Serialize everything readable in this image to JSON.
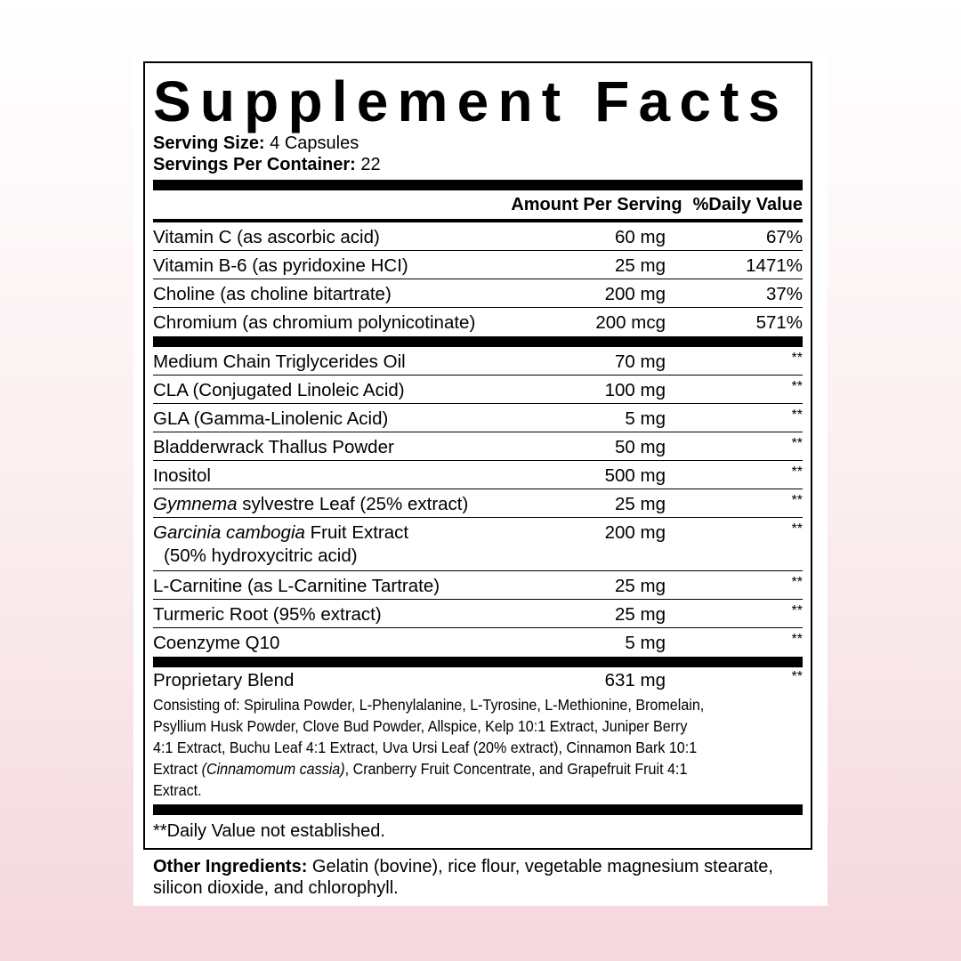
{
  "title": "Supplement Facts",
  "serving_size": {
    "label": "Serving Size:",
    "value": "4 Capsules"
  },
  "servings_per_container": {
    "label": "Servings Per Container:",
    "value": "22"
  },
  "columns": {
    "amount": "Amount Per Serving",
    "dv": "%Daily Value"
  },
  "vitamins": [
    {
      "name": "Vitamin C (as ascorbic acid)",
      "amount": "60 mg",
      "dv": "67%"
    },
    {
      "name": "Vitamin B-6 (as pyridoxine HCI)",
      "amount": "25 mg",
      "dv": "1471%"
    },
    {
      "name": "Choline (as choline bitartrate)",
      "amount": "200 mg",
      "dv": "37%"
    },
    {
      "name": "Chromium (as chromium polynicotinate)",
      "amount": "200 mcg",
      "dv": "571%"
    }
  ],
  "ingredients": [
    {
      "name": "Medium Chain Triglycerides Oil",
      "amount": "70 mg",
      "dv": "**"
    },
    {
      "name": "CLA (Conjugated Linoleic Acid)",
      "amount": "100 mg",
      "dv": "**"
    },
    {
      "name": "GLA (Gamma-Linolenic Acid)",
      "amount": "5 mg",
      "dv": "**"
    },
    {
      "name": "Bladderwrack Thallus Powder",
      "amount": "50 mg",
      "dv": "**"
    },
    {
      "name": "Inositol",
      "amount": "500 mg",
      "dv": "**"
    },
    {
      "name_italic": "Gymnema",
      "name": " sylvestre Leaf (25% extract)",
      "amount": "25 mg",
      "dv": "**"
    },
    {
      "name_italic": "Garcinia cambogia",
      "name": " Fruit Extract",
      "name_sub": "(50% hydroxycitric acid)",
      "amount": "200 mg",
      "dv": "**"
    },
    {
      "name": "L-Carnitine (as L-Carnitine Tartrate)",
      "amount": "25 mg",
      "dv": "**"
    },
    {
      "name": "Turmeric Root (95% extract)",
      "amount": "25 mg",
      "dv": "**"
    },
    {
      "name": "Coenzyme Q10",
      "amount": "5 mg",
      "dv": "**"
    }
  ],
  "blend": {
    "name": "Proprietary Blend",
    "amount": "631 mg",
    "dv": "**",
    "text_before": "Consisting of: Spirulina Powder, L-Phenylalanine, L-Tyrosine, L-Methionine, Bromelain, Psyllium Husk Powder, Clove Bud Powder, Allspice, Kelp 10:1 Extract, Juniper Berry 4:1 Extract, Buchu Leaf 4:1 Extract, Uva Ursi Leaf (20% extract), Cinnamon Bark 10:1 Extract ",
    "text_italic": "(Cinnamomum cassia)",
    "text_after": ", Cranberry Fruit Concentrate, and Grapefruit Fruit 4:1 Extract."
  },
  "footnote": "**Daily Value not established.",
  "other_ingredients": {
    "label": "Other Ingredients:",
    "value": " Gelatin (bovine), rice flour, vegetable magnesium stearate, silicon dioxide, and chlorophyll."
  }
}
